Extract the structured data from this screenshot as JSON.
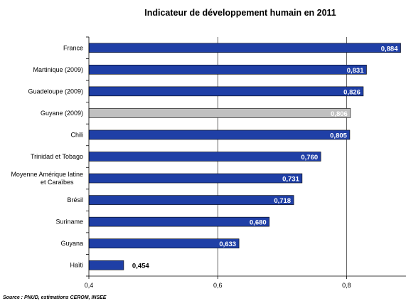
{
  "chart_data": {
    "type": "bar",
    "orientation": "horizontal",
    "title": "Indicateur de développement humain en 2011",
    "categories": [
      "France",
      "Martinique (2009)",
      "Guadeloupe (2009)",
      "Guyane (2009)",
      "Chili",
      "Trinidad et Tobago",
      "Moyenne Amérique latine et Caraïbes",
      "Brésil",
      "Suriname",
      "Guyana",
      "Haïti"
    ],
    "category_lines": [
      [
        "France"
      ],
      [
        "Martinique (2009)"
      ],
      [
        "Guadeloupe (2009)"
      ],
      [
        "Guyane (2009)"
      ],
      [
        "Chili"
      ],
      [
        "Trinidad et Tobago"
      ],
      [
        "Moyenne Amérique latine",
        "et Caraïbes"
      ],
      [
        "Brésil"
      ],
      [
        "Suriname"
      ],
      [
        "Guyana"
      ],
      [
        "Haïti"
      ]
    ],
    "values": [
      0.884,
      0.831,
      0.826,
      0.806,
      0.805,
      0.76,
      0.731,
      0.718,
      0.68,
      0.633,
      0.454
    ],
    "value_labels": [
      "0,884",
      "0,831",
      "0,826",
      "0,806",
      "0,805",
      "0,760",
      "0,731",
      "0,718",
      "0,680",
      "0,633",
      "0,454"
    ],
    "highlight_index": 3,
    "xlim": [
      0.4,
      0.9
    ],
    "x_ticks": [
      0.4,
      0.6,
      0.8
    ],
    "x_tick_labels": [
      "0,4",
      "0,6",
      "0,8"
    ],
    "colors": {
      "bar": "#1f3fa6",
      "highlight": "#c0c0c0",
      "label_on_bar": "#ffffff",
      "label_outside": "#000000"
    },
    "grid": true,
    "legend": "none"
  },
  "source": "Source : PNUD, estimations CEROM, INSEE"
}
